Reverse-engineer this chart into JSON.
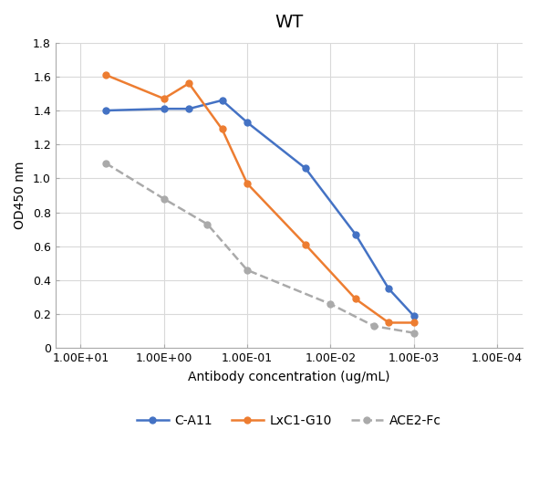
{
  "title": "WT",
  "xlabel": "Antibody concentration (ug/mL)",
  "ylabel": "OD450 nm",
  "ylim": [
    0,
    1.8
  ],
  "yticks": [
    0,
    0.2,
    0.4,
    0.6,
    0.8,
    1.0,
    1.2,
    1.4,
    1.6,
    1.8
  ],
  "xtick_positions": [
    10,
    1,
    0.1,
    0.01,
    0.001,
    0.0001
  ],
  "xtick_labels": [
    "1.00E+01",
    "1.00E+00",
    "1.00E-01",
    "1.00E-02",
    "1.00E-03",
    "1.00E-04"
  ],
  "xlim": [
    20,
    5e-05
  ],
  "ca11_x": [
    5,
    1,
    0.5,
    0.2,
    0.1,
    0.02,
    0.005,
    0.002,
    0.001
  ],
  "ca11_y": [
    1.4,
    1.41,
    1.41,
    1.46,
    1.33,
    1.06,
    0.67,
    0.35,
    0.19
  ],
  "lxc1_x": [
    5,
    1,
    0.5,
    0.2,
    0.1,
    0.02,
    0.005,
    0.002,
    0.001
  ],
  "lxc1_y": [
    1.61,
    1.47,
    1.56,
    1.29,
    0.97,
    0.61,
    0.29,
    0.15,
    0.15
  ],
  "ace2_x": [
    5,
    1,
    0.3,
    0.1,
    0.01,
    0.003,
    0.001
  ],
  "ace2_y": [
    1.09,
    0.88,
    0.73,
    0.46,
    0.26,
    0.13,
    0.09
  ],
  "color_ca11": "#4472C4",
  "color_lxc1": "#ED7D31",
  "color_ace2": "#AAAAAA",
  "legend_labels": [
    "C-A11",
    "LxC1-G10",
    "ACE2-Fc"
  ],
  "title_fontsize": 14,
  "axis_label_fontsize": 10,
  "tick_fontsize": 9,
  "legend_fontsize": 10,
  "linewidth": 1.8,
  "markersize": 5,
  "grid_color": "#D9D9D9",
  "bg_color": "#FFFFFF"
}
